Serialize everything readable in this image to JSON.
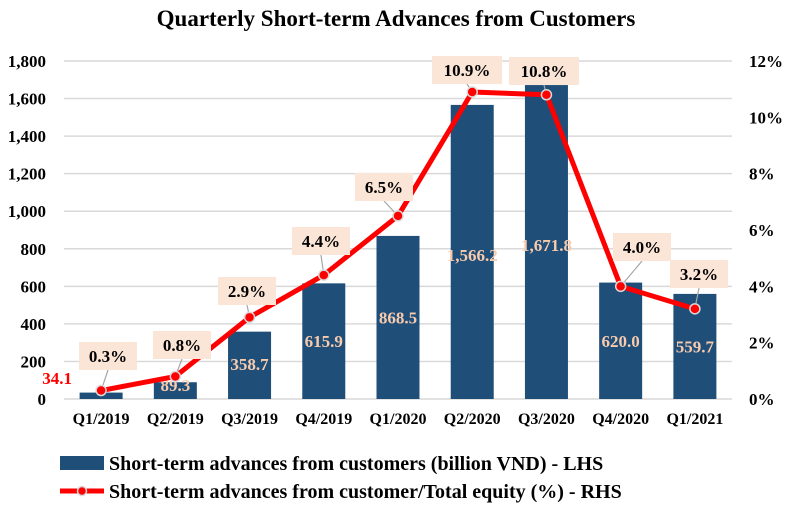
{
  "chart_data": {
    "type": "bar+line",
    "title": "Quarterly Short-term Advances from Customers",
    "categories": [
      "Q1/2019",
      "Q2/2019",
      "Q3/2019",
      "Q4/2019",
      "Q1/2020",
      "Q2/2020",
      "Q3/2020",
      "Q4/2020",
      "Q1/2021"
    ],
    "series": [
      {
        "name": "Short-term advances from customers (billion VND) - LHS",
        "type": "bar",
        "axis": "left",
        "color": "#1F4E79",
        "values": [
          34.1,
          89.3,
          358.7,
          615.9,
          868.5,
          1566.2,
          1671.8,
          620.0,
          559.7
        ],
        "labels": [
          "34.1",
          "89.3",
          "358.7",
          "615.9",
          "868.5",
          "1,566.2",
          "1,671.8",
          "620.0",
          "559.7"
        ]
      },
      {
        "name": "Short-term advances from customer/Total equity (%) - RHS",
        "type": "line",
        "axis": "right",
        "color": "#FF0000",
        "values": [
          0.3,
          0.8,
          2.9,
          4.4,
          6.5,
          10.9,
          10.8,
          4.0,
          3.2
        ],
        "labels": [
          "0.3%",
          "0.8%",
          "2.9%",
          "4.4%",
          "6.5%",
          "10.9%",
          "10.8%",
          "4.0%",
          "3.2%"
        ]
      }
    ],
    "y_left": {
      "ylim": [
        0,
        1800
      ],
      "ticks": [
        0,
        200,
        400,
        600,
        800,
        1000,
        1200,
        1400,
        1600,
        1800
      ],
      "tick_labels": [
        "0",
        "200",
        "400",
        "600",
        "800",
        "1,000",
        "1,200",
        "1,400",
        "1,600",
        "1,800"
      ]
    },
    "y_right": {
      "ylim": [
        0,
        12
      ],
      "ticks": [
        0,
        2,
        4,
        6,
        8,
        10,
        12
      ],
      "tick_labels": [
        "0%",
        "2%",
        "4%",
        "6%",
        "8%",
        "10%",
        "12%"
      ]
    },
    "xlabel": "",
    "ylabel": "",
    "grid": true,
    "legend_position": "bottom",
    "label_box_color": "#FBE5D6",
    "bar_label_color": "#F8CBAD"
  }
}
